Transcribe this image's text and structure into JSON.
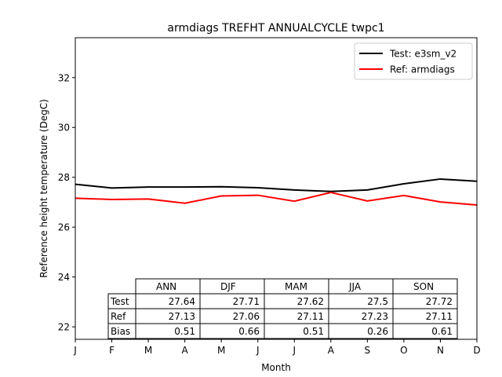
{
  "chart_data": {
    "type": "line",
    "title": "armdiags TREFHT ANNUALCYCLE twpc1",
    "xlabel": "Month",
    "ylabel": "Reference height temperature (DegC)",
    "x": [
      "J",
      "F",
      "M",
      "A",
      "M",
      "J",
      "J",
      "A",
      "S",
      "O",
      "N",
      "D"
    ],
    "ylim": [
      21.5,
      33.6
    ],
    "yticks": [
      22,
      24,
      26,
      28,
      30,
      32
    ],
    "grid": false,
    "legend_position": "top-right",
    "series": [
      {
        "name": "Test: e3sm_v2",
        "color": "#000000",
        "values": [
          27.72,
          27.57,
          27.61,
          27.61,
          27.62,
          27.58,
          27.49,
          27.43,
          27.49,
          27.74,
          27.93,
          27.84
        ]
      },
      {
        "name": "Ref: armdiags",
        "color": "#ff0000",
        "values": [
          27.16,
          27.11,
          27.13,
          26.96,
          27.25,
          27.28,
          27.04,
          27.39,
          27.05,
          27.27,
          27.01,
          26.89
        ]
      }
    ],
    "table": {
      "columns": [
        "ANN",
        "DJF",
        "MAM",
        "JJA",
        "SON"
      ],
      "rows": [
        {
          "label": "Test",
          "values": [
            "27.64",
            "27.71",
            "27.62",
            "27.5",
            "27.72"
          ]
        },
        {
          "label": "Ref",
          "values": [
            "27.13",
            "27.06",
            "27.11",
            "27.23",
            "27.11"
          ]
        },
        {
          "label": "Bias",
          "values": [
            "0.51",
            "0.66",
            "0.51",
            "0.26",
            "0.61"
          ]
        }
      ]
    }
  }
}
